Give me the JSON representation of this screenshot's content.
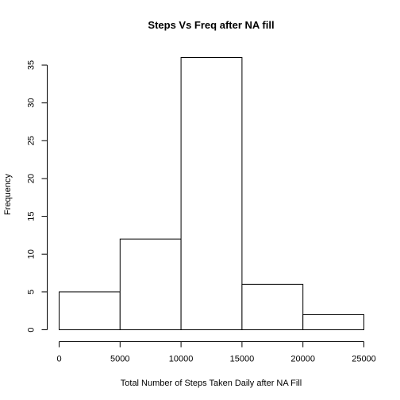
{
  "chart_data": {
    "type": "bar",
    "title": "Steps Vs Freq after NA fill",
    "xlabel": "Total Number of Steps Taken Daily after NA Fill",
    "ylabel": "Frequency",
    "bins": [
      {
        "start": 0,
        "end": 5000,
        "count": 5
      },
      {
        "start": 5000,
        "end": 10000,
        "count": 12
      },
      {
        "start": 10000,
        "end": 15000,
        "count": 36
      },
      {
        "start": 15000,
        "end": 20000,
        "count": 6
      },
      {
        "start": 20000,
        "end": 25000,
        "count": 2
      }
    ],
    "xlim": [
      0,
      25000
    ],
    "ylim": [
      0,
      36
    ],
    "xticks": [
      0,
      5000,
      10000,
      15000,
      20000,
      25000
    ],
    "yticks": [
      0,
      5,
      10,
      15,
      20,
      25,
      30,
      35
    ],
    "grid": false,
    "legend": "none"
  }
}
